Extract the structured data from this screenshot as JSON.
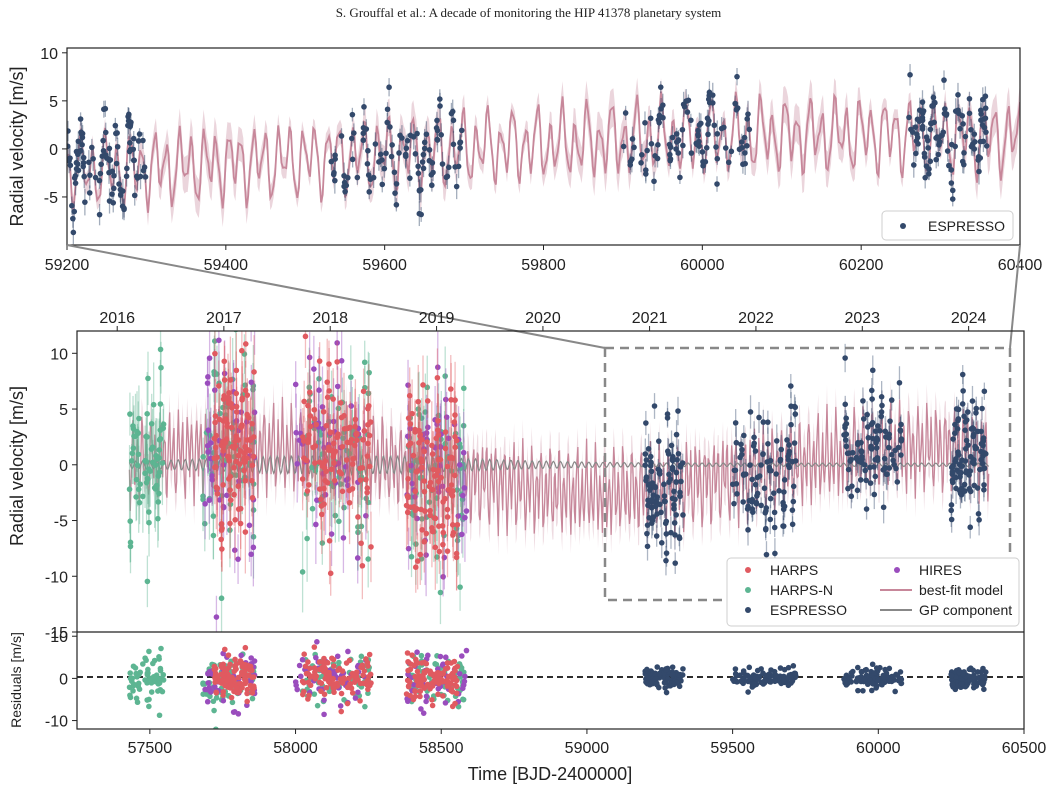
{
  "header": {
    "running_title": "S. Grouffal et al.: A decade of monitoring the HIP 41378 planetary system"
  },
  "colors": {
    "HARPS": "#e05a60",
    "HARPS-N": "#5db592",
    "ESPRESSO": "#33496b",
    "HIRES": "#9a4dbd",
    "model": "#c7879a",
    "gp": "#888888",
    "zoom_box": "#888888"
  },
  "chart_data": [
    {
      "panel": "zoom",
      "type": "scatter",
      "ylabel": "Radial velocity [m/s]",
      "xlim": [
        59200,
        60400
      ],
      "ylim": [
        -10,
        10.5
      ],
      "xticks": [
        59200,
        59400,
        59600,
        59800,
        60000,
        60200,
        60400
      ],
      "yticks": [
        -5,
        0,
        5,
        10
      ],
      "legend": {
        "placement": "lower-right",
        "entries": [
          "ESPRESSO"
        ]
      },
      "series": [
        {
          "name": "ESPRESSO",
          "role": "data",
          "n_points": 400,
          "season_windows": [
            [
              59200,
              59300
            ],
            [
              59530,
              59700
            ],
            [
              59900,
              60060
            ],
            [
              60260,
              60360
            ]
          ]
        },
        {
          "role": "best-fit model (with uncertainty band)"
        }
      ]
    },
    {
      "panel": "full",
      "type": "scatter",
      "ylabel": "Radial velocity [m/s]",
      "xlim": [
        57250,
        60500
      ],
      "ylim": [
        -15,
        12
      ],
      "yticks": [
        -15,
        -10,
        -5,
        0,
        5,
        10
      ],
      "top_axis_years": [
        "2016",
        "2017",
        "2018",
        "2019",
        "2020",
        "2021",
        "2022",
        "2023",
        "2024"
      ],
      "top_axis_year_positions_bjd": [
        57388,
        57754,
        58119,
        58484,
        58849,
        59215,
        59580,
        59945,
        60310
      ],
      "zoom_window": [
        59200,
        60400
      ],
      "legend": {
        "placement": "lower-right",
        "entries": [
          "HARPS",
          "HARPS-N",
          "ESPRESSO",
          "HIRES",
          "best-fit model",
          "GP component"
        ]
      },
      "series": [
        {
          "name": "HARPS",
          "n_points": 320,
          "seasons": [
            [
              57720,
              57860
            ],
            [
              58020,
              58260
            ],
            [
              58380,
              58560
            ]
          ]
        },
        {
          "name": "HARPS-N",
          "n_points": 260,
          "seasons": [
            [
              57430,
              57550
            ],
            [
              57680,
              57860
            ],
            [
              58020,
              58260
            ],
            [
              58380,
              58580
            ]
          ]
        },
        {
          "name": "ESPRESSO",
          "n_points": 400,
          "seasons": [
            [
              59200,
              59330
            ],
            [
              59500,
              59720
            ],
            [
              59880,
              60080
            ],
            [
              60250,
              60370
            ]
          ]
        },
        {
          "name": "HIRES",
          "n_points": 140,
          "seasons": [
            [
              57680,
              57860
            ],
            [
              58000,
              58260
            ],
            [
              58380,
              58600
            ]
          ]
        },
        {
          "name": "best-fit model",
          "kind": "line"
        },
        {
          "name": "GP component",
          "kind": "line"
        }
      ]
    },
    {
      "panel": "residuals",
      "type": "scatter",
      "xlabel": "Time [BJD-2400000]",
      "ylabel": "Residuals [m/s]",
      "xlim": [
        57250,
        60500
      ],
      "ylim": [
        -12,
        11
      ],
      "xticks": [
        57500,
        58000,
        58500,
        59000,
        59500,
        60000,
        60500
      ],
      "yticks": [
        -10,
        0,
        10
      ],
      "zero_line": "dashed"
    }
  ]
}
